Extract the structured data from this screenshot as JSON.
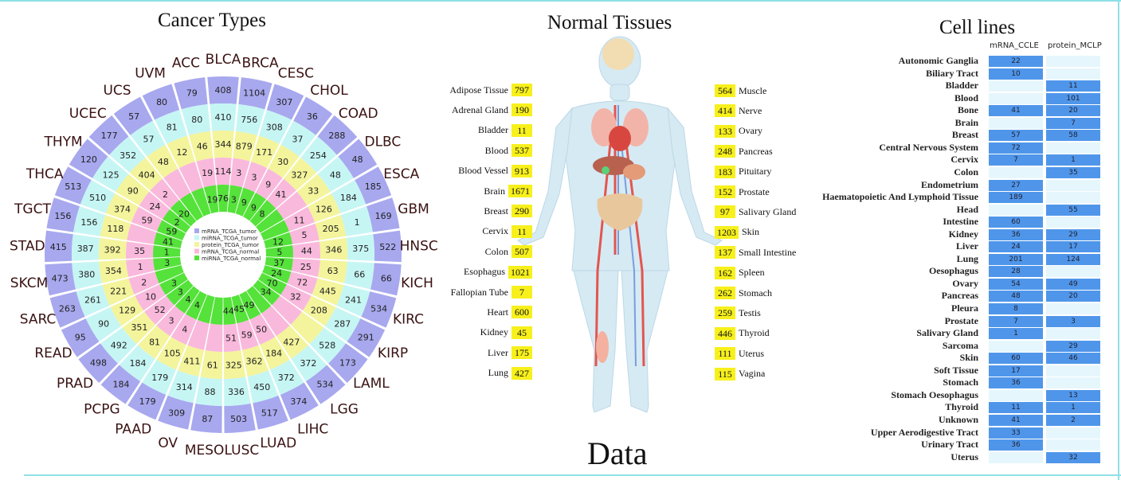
{
  "titles": {
    "cancer": "Cancer Types",
    "tissues": "Normal Tissues",
    "cells": "Cell lines",
    "bottom": "Data"
  },
  "wheel": {
    "colors": {
      "ring1": "#a8a8ef",
      "ring2": "#c6f6f4",
      "ring3": "#f4f49c",
      "ring4": "#f9b9dc",
      "ring5": "#55e23a"
    },
    "legend": [
      "mRNA_TCGA_tumor",
      "miRNA_TCGA_tumor",
      "protein_TCGA_tumor",
      "mRNA_TCGA_normal",
      "miRNA_TCGA_normal"
    ],
    "cancers": [
      {
        "name": "ACC",
        "r": [
          79,
          80,
          46,
          19,
          19
        ]
      },
      {
        "name": "BLCA",
        "r": [
          408,
          410,
          344,
          114,
          76
        ]
      },
      {
        "name": "BRCA",
        "r": [
          1104,
          756,
          879,
          3,
          3
        ]
      },
      {
        "name": "CESC",
        "r": [
          307,
          308,
          171,
          3,
          9
        ]
      },
      {
        "name": "CHOL",
        "r": [
          36,
          37,
          30,
          9,
          9
        ]
      },
      {
        "name": "COAD",
        "r": [
          288,
          254,
          327,
          41,
          8
        ]
      },
      {
        "name": "DLBC",
        "r": [
          48,
          48,
          33,
          "",
          ""
        ]
      },
      {
        "name": "ESCA",
        "r": [
          185,
          184,
          126,
          11,
          ""
        ]
      },
      {
        "name": "GBM",
        "r": [
          169,
          1,
          205,
          5,
          12
        ]
      },
      {
        "name": "HNSC",
        "r": [
          522,
          375,
          346,
          44,
          5
        ]
      },
      {
        "name": "KICH",
        "r": [
          66,
          66,
          63,
          25,
          37
        ]
      },
      {
        "name": "KIRC",
        "r": [
          534,
          241,
          445,
          72,
          24
        ]
      },
      {
        "name": "KIRP",
        "r": [
          291,
          287,
          208,
          32,
          70
        ]
      },
      {
        "name": "LAML",
        "r": [
          173,
          528,
          "",
          "",
          34
        ]
      },
      {
        "name": "LGG",
        "r": [
          534,
          372,
          427,
          "",
          ""
        ]
      },
      {
        "name": "LIHC",
        "r": [
          374,
          372,
          184,
          50,
          49
        ]
      },
      {
        "name": "LUAD",
        "r": [
          517,
          450,
          362,
          59,
          45
        ]
      },
      {
        "name": "LUSC",
        "r": [
          503,
          336,
          325,
          51,
          44
        ]
      },
      {
        "name": "MESO",
        "r": [
          87,
          88,
          61,
          "",
          ""
        ]
      },
      {
        "name": "OV",
        "r": [
          309,
          314,
          411,
          "",
          ""
        ]
      },
      {
        "name": "PAAD",
        "r": [
          179,
          179,
          105,
          4,
          4
        ]
      },
      {
        "name": "PCPG",
        "r": [
          184,
          184,
          81,
          3,
          4
        ]
      },
      {
        "name": "PRAD",
        "r": [
          498,
          492,
          351,
          52,
          3
        ]
      },
      {
        "name": "READ",
        "r": [
          95,
          90,
          129,
          10,
          3
        ]
      },
      {
        "name": "SARC",
        "r": [
          263,
          261,
          221,
          2,
          ""
        ]
      },
      {
        "name": "SKCM",
        "r": [
          473,
          380,
          354,
          1,
          3
        ]
      },
      {
        "name": "STAD",
        "r": [
          415,
          387,
          392,
          35,
          1
        ]
      },
      {
        "name": "TGCT",
        "r": [
          156,
          156,
          118,
          "",
          41
        ]
      },
      {
        "name": "THCA",
        "r": [
          513,
          510,
          374,
          59,
          59
        ]
      },
      {
        "name": "THYM",
        "r": [
          120,
          125,
          90,
          24,
          2
        ]
      },
      {
        "name": "UCEC",
        "r": [
          177,
          352,
          404,
          2,
          20
        ]
      },
      {
        "name": "UCS",
        "r": [
          57,
          57,
          48,
          "",
          ""
        ]
      },
      {
        "name": "UVM",
        "r": [
          80,
          81,
          12,
          "",
          ""
        ]
      }
    ]
  },
  "tissues": {
    "badge_color": "#f7f01c",
    "left": [
      {
        "name": "Adipose Tissue",
        "value": "797"
      },
      {
        "name": "Adrenal Gland",
        "value": "190"
      },
      {
        "name": "Bladder",
        "value": "11"
      },
      {
        "name": "Blood",
        "value": "537"
      },
      {
        "name": "Blood Vessel",
        "value": "913"
      },
      {
        "name": "Brain",
        "value": "1671"
      },
      {
        "name": "Breast",
        "value": "290"
      },
      {
        "name": "Cervix",
        "value": "11"
      },
      {
        "name": "Colon",
        "value": "507"
      },
      {
        "name": "Esophagus",
        "value": "1021"
      },
      {
        "name": "Fallopian Tube",
        "value": "7"
      },
      {
        "name": "Heart",
        "value": "600"
      },
      {
        "name": "Kidney",
        "value": "45"
      },
      {
        "name": "Liver",
        "value": "175"
      },
      {
        "name": "Lung",
        "value": "427"
      }
    ],
    "right": [
      {
        "name": "Muscle",
        "value": "564"
      },
      {
        "name": "Nerve",
        "value": "414"
      },
      {
        "name": "Ovary",
        "value": "133"
      },
      {
        "name": "Pancreas",
        "value": "248"
      },
      {
        "name": "Pituitary",
        "value": "183"
      },
      {
        "name": "Prostate",
        "value": "152"
      },
      {
        "name": "Salivary Gland",
        "value": "97"
      },
      {
        "name": "Skin",
        "value": "1203"
      },
      {
        "name": "Small Intestine",
        "value": "137"
      },
      {
        "name": "Spleen",
        "value": "162"
      },
      {
        "name": "Stomach",
        "value": "262"
      },
      {
        "name": "Testis",
        "value": "259"
      },
      {
        "name": "Thyroid",
        "value": "446"
      },
      {
        "name": "Uterus",
        "value": "111"
      },
      {
        "name": "Vagina",
        "value": "115"
      }
    ]
  },
  "cells": {
    "columns": [
      "mRNA_CCLE",
      "protein_MCLP"
    ],
    "filled_color": "#4f96ea",
    "empty_color": "#e6f6fd",
    "rows": [
      {
        "name": "Autonomic Ganglia",
        "mrna": "22",
        "protein": ""
      },
      {
        "name": "Biliary Tract",
        "mrna": "10",
        "protein": ""
      },
      {
        "name": "Bladder",
        "mrna": "",
        "protein": "11"
      },
      {
        "name": "Blood",
        "mrna": "",
        "protein": "101"
      },
      {
        "name": "Bone",
        "mrna": "41",
        "protein": "20"
      },
      {
        "name": "Brain",
        "mrna": "",
        "protein": "7"
      },
      {
        "name": "Breast",
        "mrna": "57",
        "protein": "58"
      },
      {
        "name": "Central Nervous System",
        "mrna": "72",
        "protein": ""
      },
      {
        "name": "Cervix",
        "mrna": "7",
        "protein": "1"
      },
      {
        "name": "Colon",
        "mrna": "",
        "protein": "35"
      },
      {
        "name": "Endometrium",
        "mrna": "27",
        "protein": ""
      },
      {
        "name": "Haematopoietic And Lymphoid Tissue",
        "mrna": "189",
        "protein": ""
      },
      {
        "name": "Head",
        "mrna": "",
        "protein": "55"
      },
      {
        "name": "Intestine",
        "mrna": "60",
        "protein": ""
      },
      {
        "name": "Kidney",
        "mrna": "36",
        "protein": "29"
      },
      {
        "name": "Liver",
        "mrna": "24",
        "protein": "17"
      },
      {
        "name": "Lung",
        "mrna": "201",
        "protein": "124"
      },
      {
        "name": "Oesophagus",
        "mrna": "28",
        "protein": ""
      },
      {
        "name": "Ovary",
        "mrna": "54",
        "protein": "49"
      },
      {
        "name": "Pancreas",
        "mrna": "48",
        "protein": "20"
      },
      {
        "name": "Pleura",
        "mrna": "8",
        "protein": ""
      },
      {
        "name": "Prostate",
        "mrna": "7",
        "protein": "3"
      },
      {
        "name": "Salivary Gland",
        "mrna": "1",
        "protein": ""
      },
      {
        "name": "Sarcoma",
        "mrna": "",
        "protein": "29"
      },
      {
        "name": "Skin",
        "mrna": "60",
        "protein": "46"
      },
      {
        "name": "Soft Tissue",
        "mrna": "17",
        "protein": ""
      },
      {
        "name": "Stomach",
        "mrna": "36",
        "protein": ""
      },
      {
        "name": "Stomach Oesophagus",
        "mrna": "",
        "protein": "13"
      },
      {
        "name": "Thyroid",
        "mrna": "11",
        "protein": "1"
      },
      {
        "name": "Unknown",
        "mrna": "41",
        "protein": "2"
      },
      {
        "name": "Upper Aerodigestive Tract",
        "mrna": "33",
        "protein": ""
      },
      {
        "name": "Urinary Tract",
        "mrna": "36",
        "protein": ""
      },
      {
        "name": "Uterus",
        "mrna": "",
        "protein": "32"
      }
    ]
  }
}
